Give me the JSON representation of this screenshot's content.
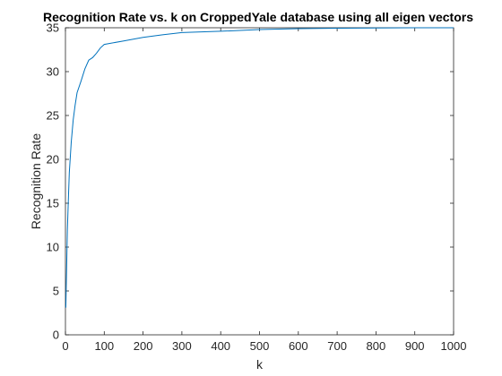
{
  "chart_data": {
    "type": "line",
    "title": "Recognition Rate vs. k on CroppedYale database using all eigen vectors",
    "xlabel": "k",
    "ylabel": "Recognition Rate",
    "xlim": [
      0,
      1000
    ],
    "ylim": [
      0,
      35
    ],
    "xticks": [
      "0",
      "100",
      "200",
      "300",
      "400",
      "500",
      "600",
      "700",
      "800",
      "900",
      "1000"
    ],
    "yticks": [
      "0",
      "5",
      "10",
      "15",
      "20",
      "25",
      "30",
      "35"
    ],
    "grid": false,
    "line_color": "#0072bd",
    "series": [
      {
        "x": [
          1,
          3,
          5,
          8,
          10,
          15,
          20,
          25,
          30,
          40,
          50,
          60,
          70,
          80,
          90,
          100,
          150,
          200,
          250,
          300,
          400,
          500,
          600,
          700,
          800,
          900,
          1000
        ],
        "values": [
          3.1,
          7.5,
          12.0,
          16.0,
          18.5,
          22.0,
          24.5,
          26.2,
          27.6,
          28.9,
          30.3,
          31.3,
          31.6,
          32.1,
          32.7,
          33.1,
          33.5,
          33.9,
          34.2,
          34.45,
          34.6,
          34.8,
          34.9,
          34.95,
          34.98,
          35.0,
          35.0
        ]
      }
    ]
  }
}
